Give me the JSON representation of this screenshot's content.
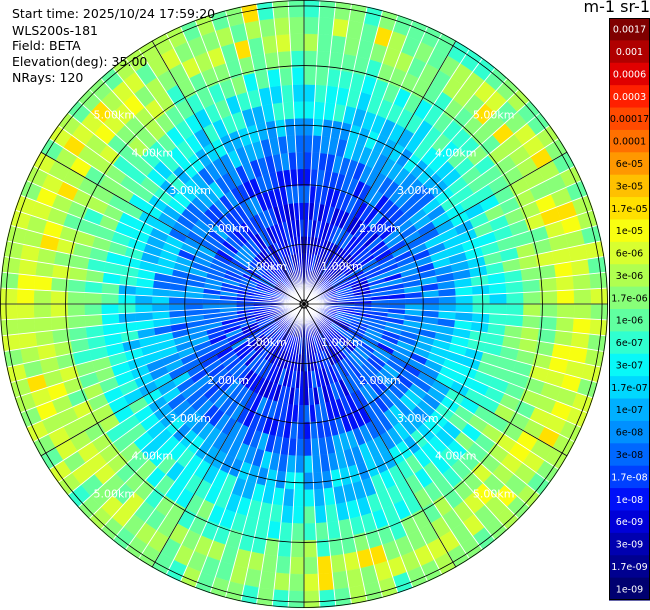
{
  "header": {
    "start_time": "Start time: 2025/10/24 17:59:20",
    "instrument": "WLS200s-181",
    "field": "Field: BETA",
    "elevation": "Elevation(deg): 35.00",
    "nrays": "NRays: 120"
  },
  "chart_data": {
    "type": "heatmap",
    "projection": "polar-ppi",
    "field": "BETA",
    "n_rays": 120,
    "n_gates": 18,
    "max_range_km": 5.1,
    "range_ring_labels": [
      "1.00km",
      "2.00km",
      "3.00km",
      "4.00km",
      "5.00km"
    ],
    "range_ring_km": [
      1,
      2,
      3,
      4,
      5
    ],
    "radial_lines_deg": [
      0,
      30,
      60,
      90,
      120,
      150,
      180,
      210,
      240,
      270,
      300,
      330
    ],
    "colorbar": {
      "title": "m-1 sr-1",
      "tick_labels": [
        "0.0017",
        "0.001",
        "0.0006",
        "0.0003",
        "0.00017",
        "0.0001",
        "6e-05",
        "3e-05",
        "1.7e-05",
        "1e-05",
        "6e-06",
        "3e-06",
        "1.7e-06",
        "1e-06",
        "6e-07",
        "3e-07",
        "1.7e-07",
        "1e-07",
        "6e-08",
        "3e-08",
        "1.7e-08",
        "1e-08",
        "6e-09",
        "3e-09",
        "1.7e-09",
        "1e-09"
      ],
      "colors": [
        "#800000",
        "#b00000",
        "#e00000",
        "#ff2000",
        "#ff4a00",
        "#ff7000",
        "#ff9800",
        "#ffc000",
        "#ffe000",
        "#f8ff10",
        "#d8ff30",
        "#b0ff50",
        "#88ff78",
        "#60ffa0",
        "#30ffd0",
        "#08f8f8",
        "#00d8ff",
        "#00b0ff",
        "#0090ff",
        "#0068ff",
        "#0040ff",
        "#0010f8",
        "#0000d8",
        "#0000b0",
        "#000090",
        "#000070"
      ],
      "scale": "log"
    },
    "radial_profile_class": [
      22,
      22,
      21,
      21,
      20,
      20,
      19,
      19,
      18,
      17,
      16,
      15,
      14,
      13,
      12,
      11,
      11,
      12
    ]
  }
}
